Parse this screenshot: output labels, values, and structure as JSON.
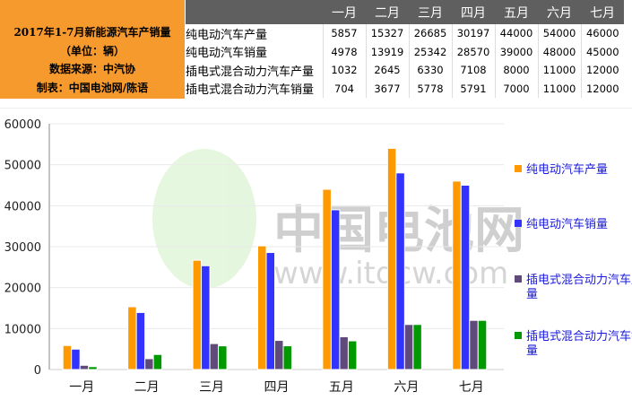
{
  "info": {
    "title": "2017年1-7月新能源汽车产销量",
    "unit": "（单位：辆）",
    "source": "数据来源：中汽协",
    "maker": "制表：中国电池网/陈语"
  },
  "watermark": {
    "text": "中国电池网",
    "url": "www.itdcw.com"
  },
  "chart_data": {
    "type": "bar",
    "categories": [
      "一月",
      "二月",
      "三月",
      "四月",
      "五月",
      "六月",
      "七月"
    ],
    "ylim": [
      0,
      60000
    ],
    "yticks": [
      0,
      10000,
      20000,
      30000,
      40000,
      50000,
      60000
    ],
    "grid": true,
    "legend_position": "right",
    "series": [
      {
        "name": "纯电动汽车产量",
        "color": "#ff9900",
        "values": [
          5857,
          15327,
          26685,
          30197,
          44000,
          54000,
          46000
        ]
      },
      {
        "name": "纯电动汽车销量",
        "color": "#3333ff",
        "values": [
          4978,
          13919,
          25342,
          28570,
          39000,
          48000,
          45000
        ]
      },
      {
        "name": "插电式混合动力汽车产量",
        "color": "#604a7b",
        "values": [
          1032,
          2645,
          6330,
          7108,
          8000,
          11000,
          12000
        ]
      },
      {
        "name": "插电式混合动力汽车销量",
        "color": "#009900",
        "values": [
          704,
          3677,
          5778,
          5791,
          7000,
          11000,
          12000
        ]
      }
    ]
  }
}
